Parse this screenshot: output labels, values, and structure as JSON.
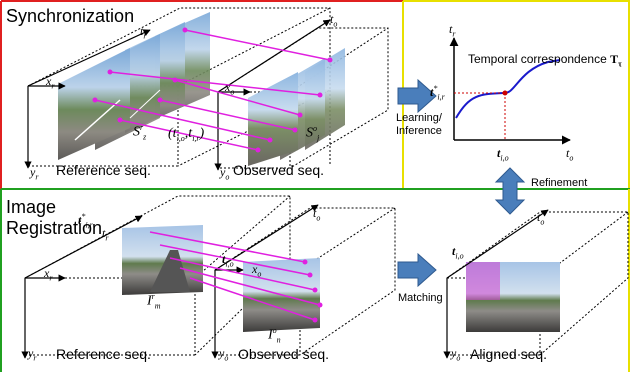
{
  "sections": {
    "synchronization": {
      "title": "Synchronization"
    },
    "registration": {
      "title_line1": "Image",
      "title_line2": "Registration"
    }
  },
  "captions": {
    "reference_seq_top": "Reference seq.",
    "observed_seq_top": "Observed seq.",
    "reference_seq_bottom": "Reference seq.",
    "observed_seq_bottom": "Observed seq.",
    "aligned_seq": "Aligned seq."
  },
  "arrows": {
    "learning_line1": "Learning/",
    "learning_line2": "Inference",
    "refinement": "Refinement",
    "matching": "Matching"
  },
  "axes": {
    "x_r": "x",
    "x_r_sub": "r",
    "y_r": "y",
    "y_r_sub": "r",
    "t_r": "t",
    "t_r_sub": "r",
    "t_o": "t",
    "t_o_sub": "o",
    "x_o": "x",
    "x_o_sub": "o",
    "y_o": "y",
    "y_o_sub": "o"
  },
  "math": {
    "S_r_base": "S",
    "S_r_sup": "r",
    "S_r_sub": "z",
    "S_o_base": "S",
    "S_o_sup": "o",
    "S_o_sub": "j",
    "pair_text": "(t",
    "pair_sub1": "i,o",
    "pair_mid": ",t",
    "pair_sub2": "i,r",
    "pair_end": ")",
    "I_r_base": "I",
    "I_r_sup": "r",
    "I_r_sub": "m",
    "I_o_base": "I",
    "I_o_sup": "o",
    "I_o_sub": "n",
    "tir_base": "t",
    "tir_sup": "*",
    "tir_sub": "i,r",
    "tio_base": "t",
    "tio_sub": "i,o"
  },
  "graph": {
    "title": "Temporal correspondence",
    "title_symbol": "T",
    "title_symbol_sub": "τ",
    "y_axis": "t",
    "y_axis_sub": "r",
    "x_axis": "t",
    "x_axis_sub": "o",
    "tir_base": "t",
    "tir_sup": "*",
    "tir_sub": "i,r",
    "tio_base": "t",
    "tio_sub": "i,o"
  },
  "colors": {
    "top_left_border": "#e02020",
    "top_right_border": "#e8e000",
    "bottom_left_border": "#20a020",
    "divider_green": "#20a020",
    "connector": "#e020e0",
    "block_arrow": "#4a7ebb",
    "curve": "#1a1acc",
    "guide": "#cc0000"
  },
  "icons": {
    "block_arrow_right": "arrow-right-icon",
    "block_arrow_vertical": "arrow-up-down-icon"
  }
}
